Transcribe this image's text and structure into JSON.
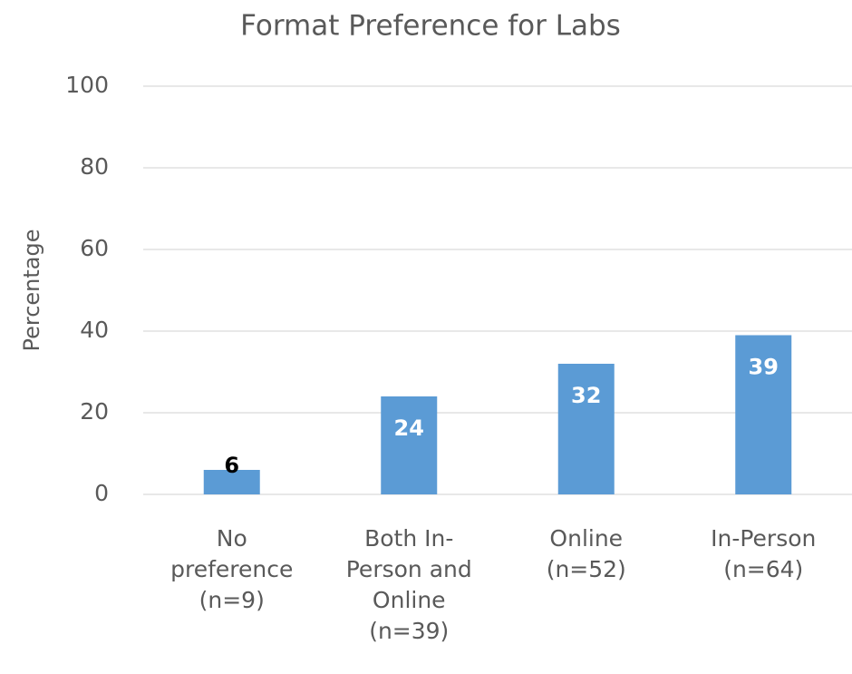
{
  "chart_data": {
    "type": "bar",
    "title": "Format Preference for Labs",
    "y_label": "Percentage",
    "categories": [
      "No preference (n=9)",
      "Both In-Person and Online (n=39)",
      "Online (n=52)",
      "In-Person (n=64)"
    ],
    "values": [
      6,
      24,
      32,
      39
    ],
    "color": "#5b9bd5",
    "value_label_colors": [
      "#000000",
      "#ffffff",
      "#ffffff",
      "#ffffff"
    ],
    "ylim": [
      0,
      100
    ],
    "yticks": [
      0,
      20,
      40,
      60,
      80,
      100
    ],
    "grid": true
  }
}
